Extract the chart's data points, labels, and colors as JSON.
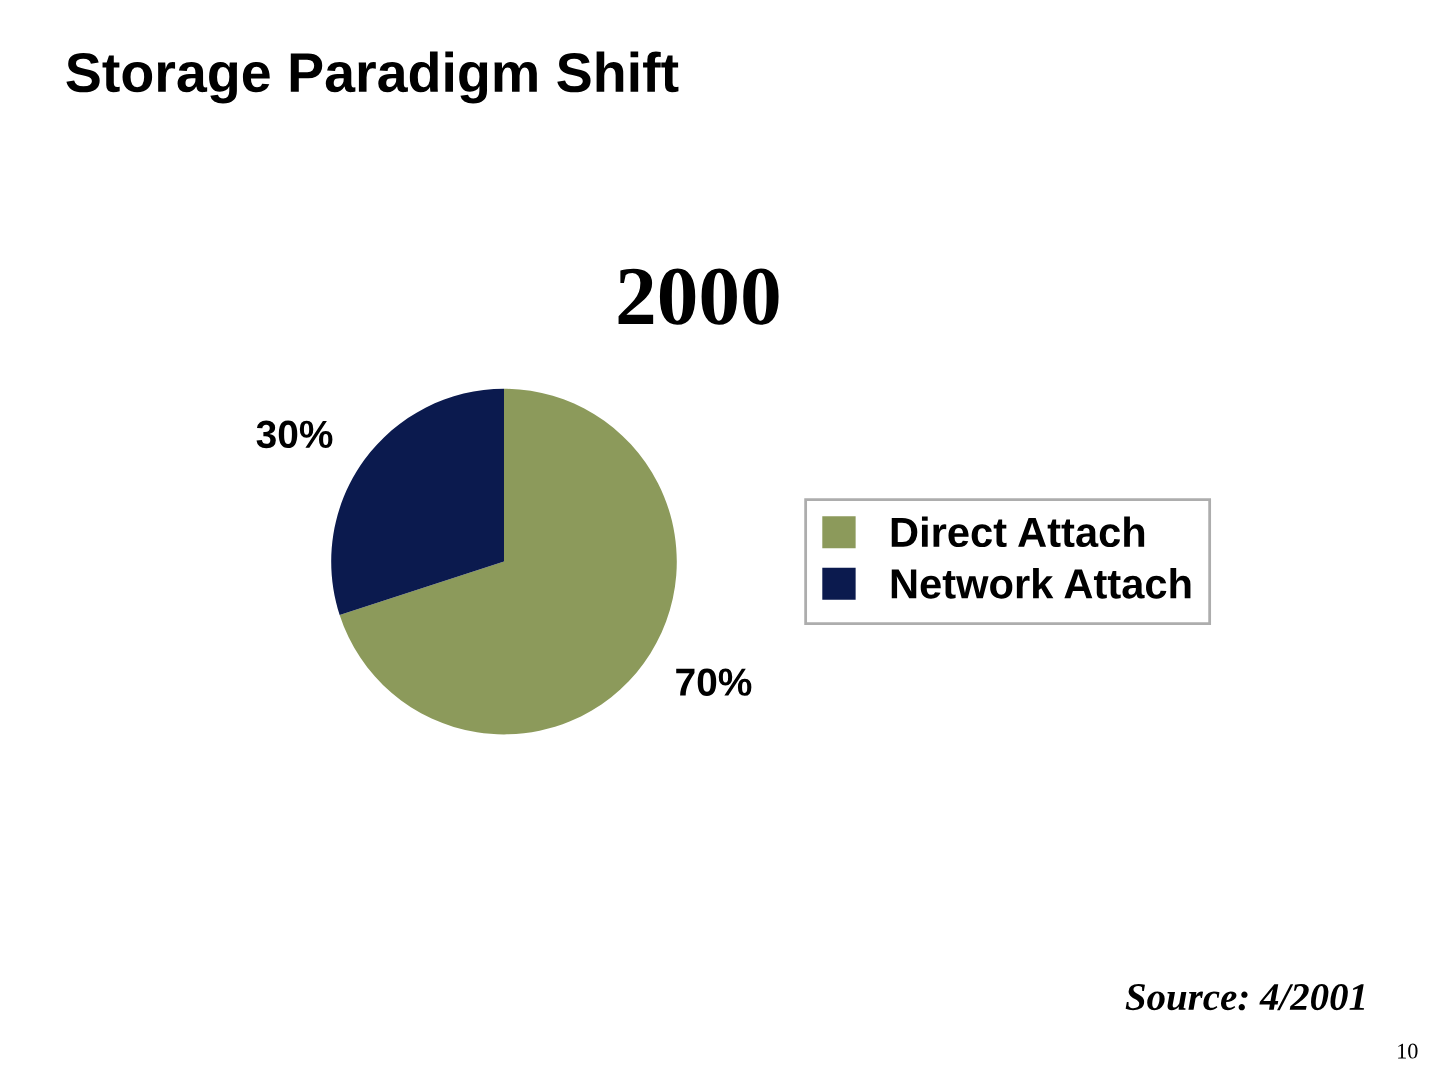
{
  "chart_data": {
    "type": "pie",
    "title": "Storage Paradigm Shift",
    "subtitle": "2000",
    "categories": [
      "Direct Attach",
      "Network Attach"
    ],
    "values": [
      70,
      30
    ],
    "value_labels": [
      "70%",
      "30%"
    ],
    "colors": [
      "#8c9a5b",
      "#0b1a4e"
    ],
    "legend": "right",
    "annotations": [
      "Source: 4/2001",
      "10"
    ]
  }
}
